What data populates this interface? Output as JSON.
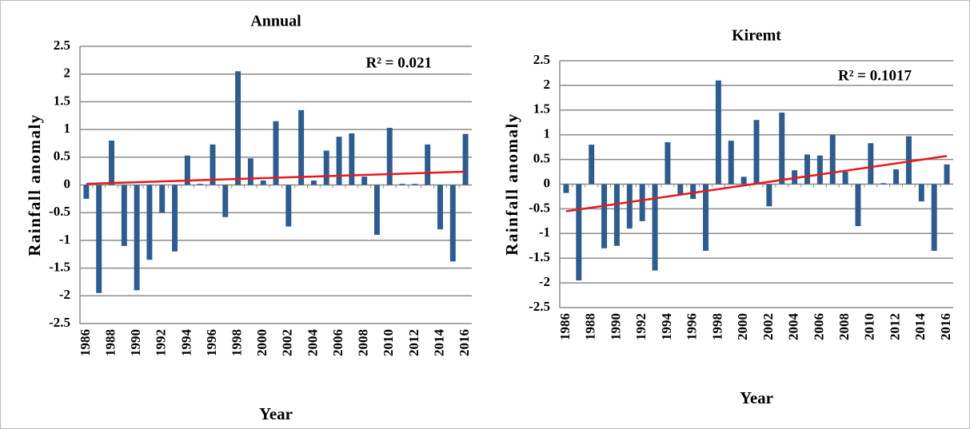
{
  "chart_data": [
    {
      "type": "bar",
      "title": "Annual",
      "xlabel": "Year",
      "ylabel": "Rainfall anomaly",
      "annotation": "R² = 0.021",
      "categories": [
        "1986",
        null,
        "1988",
        null,
        "1990",
        null,
        "1992",
        null,
        "1994",
        null,
        "1996",
        null,
        "1998",
        null,
        "2000",
        null,
        "2002",
        null,
        "2004",
        null,
        "2006",
        null,
        "2008",
        null,
        "2010",
        null,
        "2012",
        null,
        "2014",
        null,
        "2016"
      ],
      "values": [
        -0.25,
        -1.95,
        0.8,
        -1.1,
        -1.9,
        -1.35,
        -0.5,
        -1.2,
        0.53,
        0.02,
        0.73,
        -0.58,
        2.05,
        0.48,
        0.08,
        1.15,
        -0.75,
        1.35,
        0.08,
        0.62,
        0.87,
        0.93,
        0.15,
        -0.9,
        1.03,
        0.02,
        0.02,
        0.73,
        -0.8,
        -1.38,
        0.92
      ],
      "color": "#2f5c8f",
      "trendline": {
        "color": "#e8181b",
        "values": [
          0.02,
          0.24
        ]
      },
      "ylim": [
        -2.5,
        2.5
      ],
      "yticks": [
        2.5,
        2,
        1.5,
        1,
        0.5,
        0,
        -0.5,
        -1,
        -1.5,
        -2,
        -2.5
      ],
      "grid": true
    },
    {
      "type": "bar",
      "title": "Kiremt",
      "xlabel": "Year",
      "ylabel": "Rainfall anomaly",
      "annotation": "R² = 0.1017",
      "categories": [
        "1986",
        null,
        "1988",
        null,
        "1990",
        null,
        "1992",
        null,
        "1994",
        null,
        "1996",
        null,
        "1998",
        null,
        "2000",
        null,
        "2002",
        null,
        "2004",
        null,
        "2006",
        null,
        "2008",
        null,
        "2010",
        null,
        "2012",
        null,
        "2014",
        null,
        "2016"
      ],
      "values": [
        -0.18,
        -1.95,
        0.8,
        -1.3,
        -1.25,
        -0.9,
        -0.75,
        -1.75,
        0.85,
        -0.2,
        -0.3,
        -1.35,
        2.1,
        0.88,
        0.15,
        1.3,
        -0.45,
        1.45,
        0.28,
        0.6,
        0.58,
        1.0,
        0.25,
        -0.85,
        0.83,
        0.02,
        0.3,
        0.97,
        -0.35,
        -1.35,
        0.4
      ],
      "color": "#2f5c8f",
      "trendline": {
        "color": "#e8181b",
        "values": [
          -0.55,
          0.57
        ]
      },
      "ylim": [
        -2.5,
        2.5
      ],
      "yticks": [
        2.5,
        2,
        1.5,
        1,
        0.5,
        0,
        -0.5,
        -1,
        -1.5,
        -2,
        -2.5
      ],
      "grid": true
    }
  ]
}
